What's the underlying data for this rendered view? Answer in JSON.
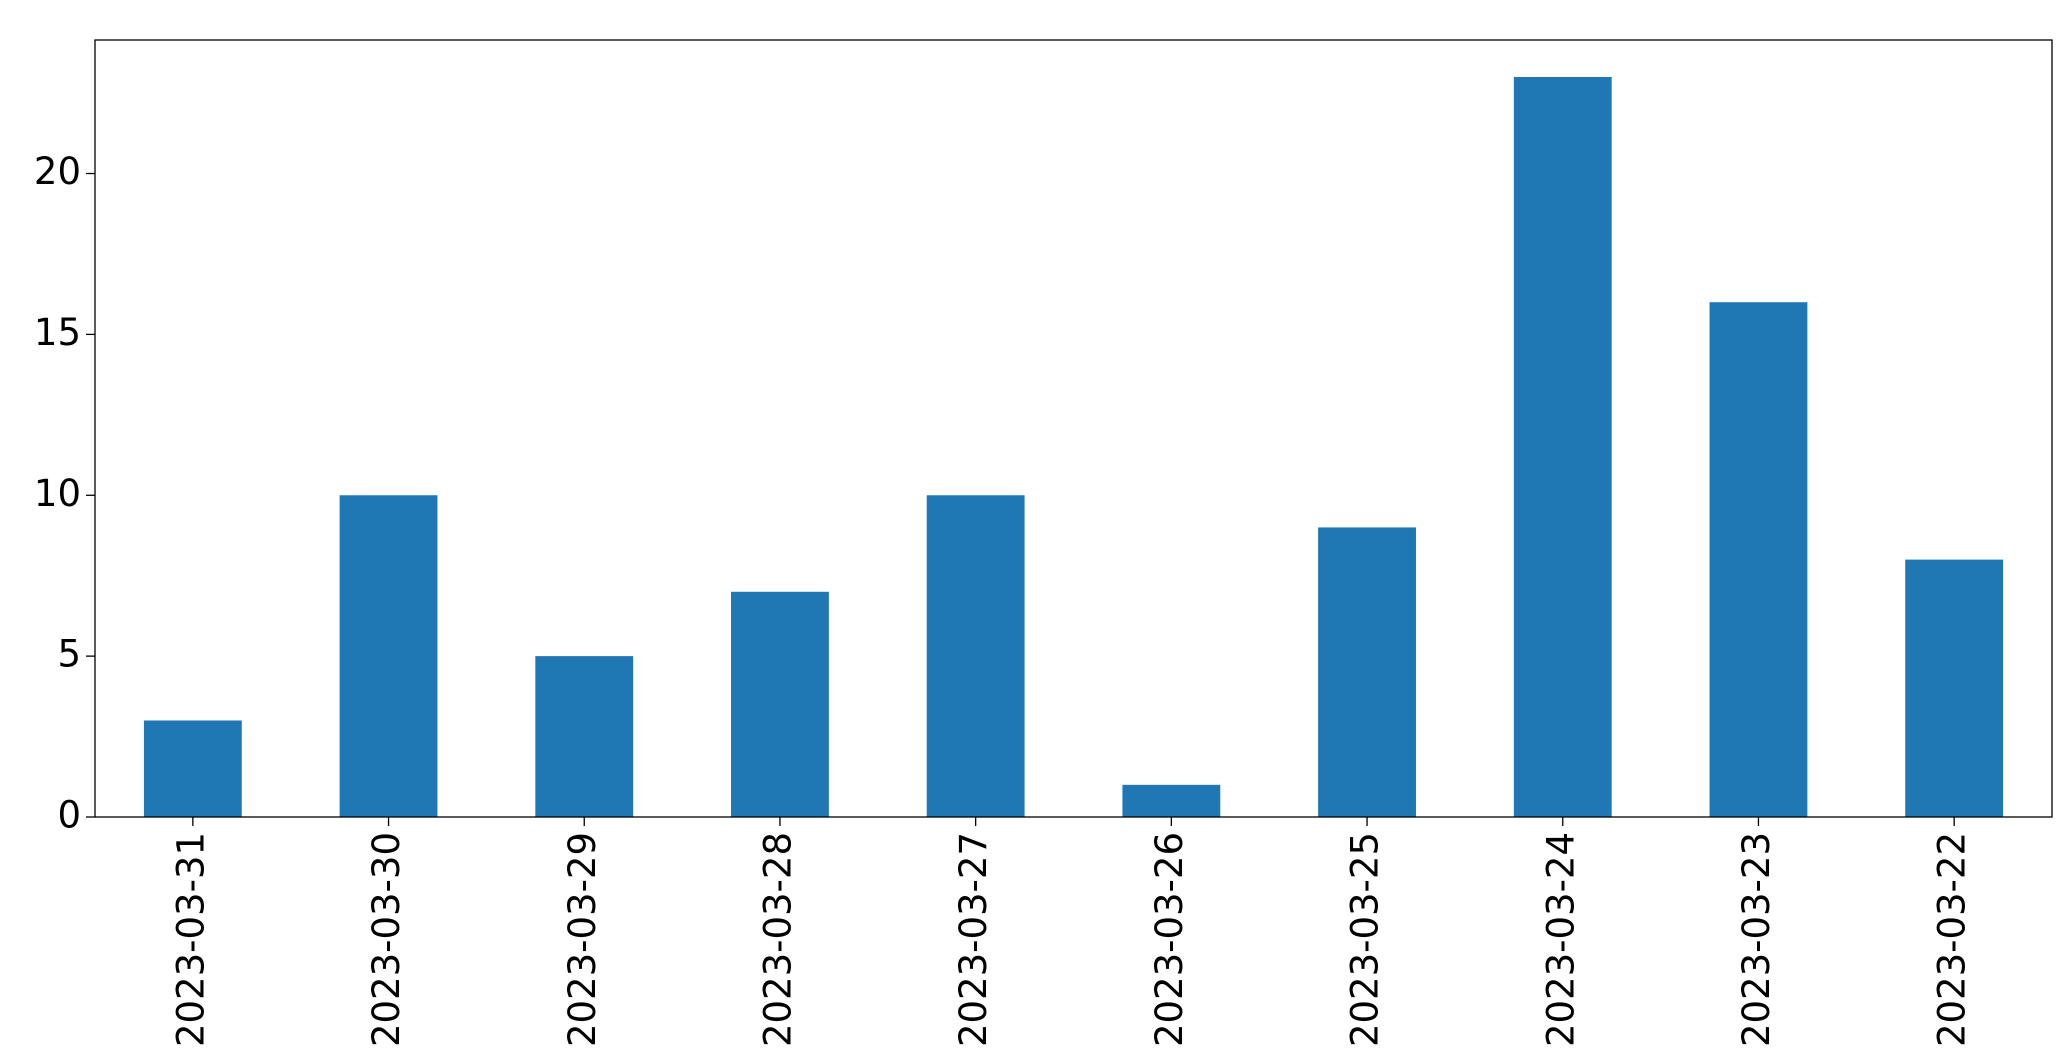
{
  "chart_data": {
    "type": "bar",
    "categories": [
      "2023-03-31",
      "2023-03-30",
      "2023-03-29",
      "2023-03-28",
      "2023-03-27",
      "2023-03-26",
      "2023-03-25",
      "2023-03-24",
      "2023-03-23",
      "2023-03-22"
    ],
    "values": [
      3,
      10,
      5,
      7,
      10,
      1,
      9,
      23,
      16,
      8
    ],
    "color": "#1f77b4",
    "ylim": [
      0,
      24.15
    ],
    "yticks": [
      0,
      5,
      10,
      15,
      20
    ],
    "grid": false
  }
}
